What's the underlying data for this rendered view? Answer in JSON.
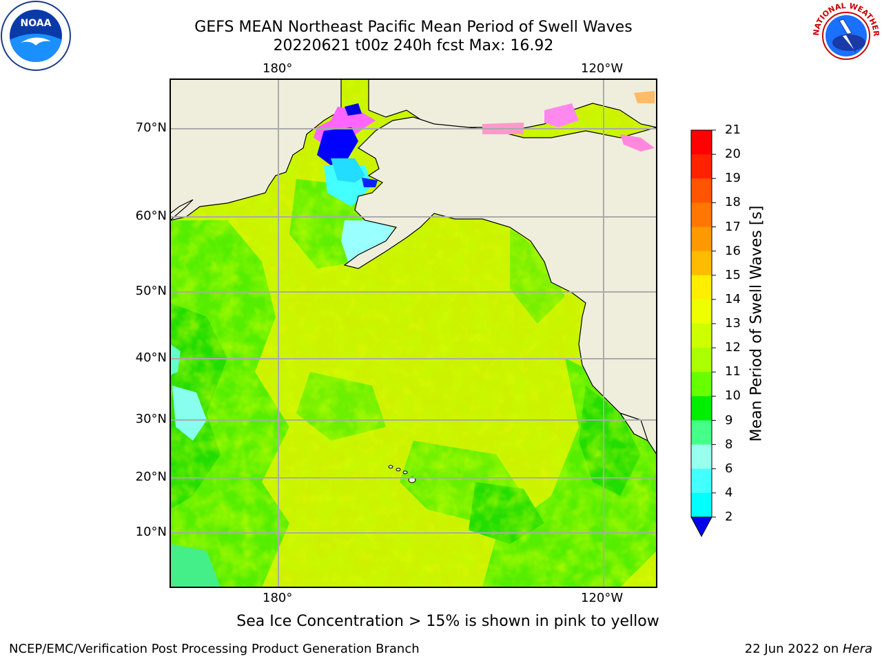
{
  "title_line1": "GEFS MEAN Northeast Pacific Mean Period of Swell Waves",
  "title_line2": "20220621 t00z 240h fcst   Max: 16.92",
  "lon_labels_top": [
    "180°",
    "120°W"
  ],
  "lon_labels_bottom": [
    "180°",
    "120°W"
  ],
  "lat_labels": [
    "70°N",
    "60°N",
    "50°N",
    "40°N",
    "30°N",
    "20°N",
    "10°N"
  ],
  "colorbar": {
    "label": "Mean Period of Swell Waves [s]",
    "ticks": [
      "21",
      "20",
      "19",
      "18",
      "17",
      "16",
      "15",
      "14",
      "13",
      "12",
      "11",
      "10",
      "9",
      "8",
      "6",
      "4",
      "2"
    ],
    "colors": [
      "#ff0000",
      "#ff2200",
      "#ff5500",
      "#ff7700",
      "#ff9900",
      "#ffbb00",
      "#ffee00",
      "#eeff00",
      "#ccff00",
      "#aaff00",
      "#66ff00",
      "#00ee00",
      "#44ff88",
      "#99ffee",
      "#44ffff",
      "#00ffff",
      "#00ddff",
      "#0077ff",
      "#0000ee"
    ]
  },
  "footer_note": "Sea Ice Concentration > 15% is shown in pink to yellow",
  "credit": "NCEP/EMC/Verification Post Processing Product Generation Branch",
  "stamp_prefix": "22 Jun 2022 on ",
  "stamp_host": "Hera",
  "logos": {
    "left": "NOAA",
    "right_arc": "NATIONAL WEATHER SERVICE"
  }
}
